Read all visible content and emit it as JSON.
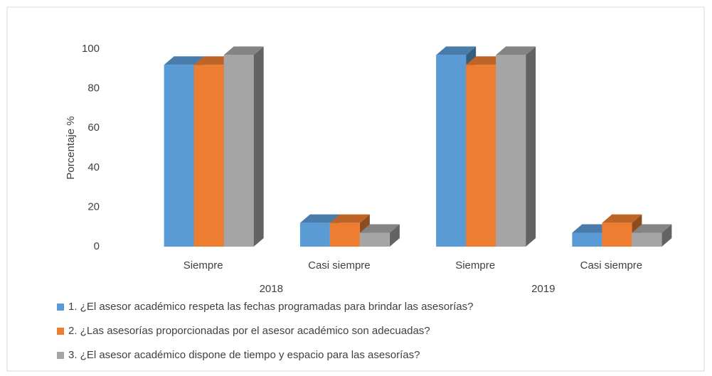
{
  "chart_data": {
    "type": "bar3d",
    "y_label": "Porcentaje %",
    "categories": [
      "Siempre",
      "Casi siempre",
      "Siempre",
      "Casi siempre"
    ],
    "category_groups": [
      "2018",
      "2019"
    ],
    "series": [
      {
        "name": "1. ¿El asesor académico respeta las fechas programadas para brindar las asesorías?",
        "color": "#5b9bd5",
        "values": [
          92,
          12,
          97,
          7
        ]
      },
      {
        "name": "2. ¿Las asesorías proporcionadas por el asesor académico son adecuadas?",
        "color": "#ed7d31",
        "values": [
          92,
          12,
          92,
          12
        ]
      },
      {
        "name": "3. ¿El asesor académico dispone de tiempo y espacio para las asesorías?",
        "color": "#a5a5a5",
        "values": [
          97,
          7,
          97,
          7
        ]
      }
    ],
    "ylim": [
      0,
      100
    ],
    "yticks": [
      0,
      20,
      40,
      60,
      80,
      100
    ],
    "grid": false,
    "legend": "bottom"
  }
}
